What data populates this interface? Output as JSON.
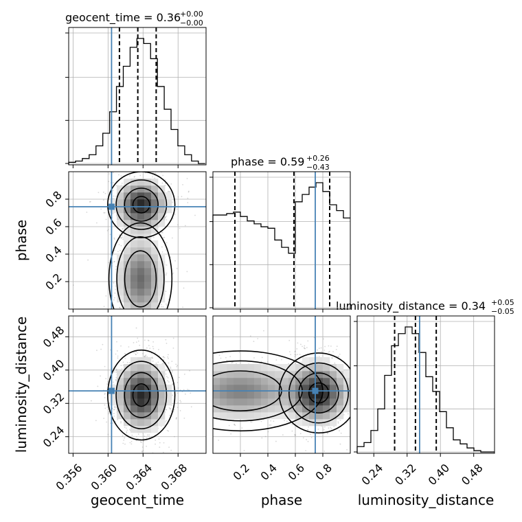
{
  "colors": {
    "truth": "#4682b4",
    "hist": "#000000",
    "grid": "#b0b0b0"
  },
  "chart_data": {
    "type": "corner",
    "parameters": [
      "geocent_time",
      "phase",
      "luminosity_distance"
    ],
    "titles": [
      {
        "label": "geocent_time = 0.36",
        "sup": "+0.00",
        "sub": "−0.00"
      },
      {
        "label": "phase = 0.59",
        "sup": "+0.26",
        "sub": "−0.43"
      },
      {
        "label": "luminosity_distance = 0.34",
        "sup": "+0.05",
        "sub": "−0.05"
      }
    ],
    "ranges": {
      "geocent_time": [
        0.3555,
        0.3712
      ],
      "phase": [
        0.0,
        1.0
      ],
      "luminosity_distance": [
        0.2,
        0.53
      ]
    },
    "ticks": {
      "geocent_time": [
        0.356,
        0.36,
        0.364,
        0.368
      ],
      "phase": [
        0.2,
        0.4,
        0.6,
        0.8
      ],
      "luminosity_distance": [
        0.24,
        0.32,
        0.4,
        0.48
      ]
    },
    "tick_labels": {
      "geocent_time": [
        "0.356",
        "0.360",
        "0.364",
        "0.368"
      ],
      "phase": [
        "0.2",
        "0.4",
        "0.6",
        "0.8"
      ],
      "luminosity_distance": [
        "0.24",
        "0.32",
        "0.40",
        "0.48"
      ]
    },
    "truth": {
      "geocent_time": 0.3604,
      "phase": 0.745,
      "luminosity_distance": 0.35
    },
    "quantiles": {
      "geocent_time": [
        0.3613,
        0.3634,
        0.3655
      ],
      "phase": [
        0.16,
        0.59,
        0.85
      ],
      "luminosity_distance": [
        0.29,
        0.34,
        0.39
      ]
    },
    "histograms": {
      "geocent_time": {
        "bin_edges": [
          0.3555,
          0.35628,
          0.35706,
          0.35784,
          0.35862,
          0.3594,
          0.36018,
          0.36096,
          0.36174,
          0.36252,
          0.3633,
          0.36408,
          0.36486,
          0.36564,
          0.36642,
          0.3672,
          0.36798,
          0.36876,
          0.36954,
          0.37032,
          0.3711
        ],
        "counts": [
          0.02,
          0.03,
          0.05,
          0.08,
          0.15,
          0.25,
          0.42,
          0.62,
          0.78,
          0.93,
          1.0,
          0.96,
          0.84,
          0.62,
          0.44,
          0.28,
          0.15,
          0.08,
          0.03,
          0.01
        ]
      },
      "phase": {
        "bin_edges": [
          0.0,
          0.05,
          0.1,
          0.15,
          0.2,
          0.25,
          0.3,
          0.35,
          0.4,
          0.45,
          0.5,
          0.55,
          0.6,
          0.65,
          0.7,
          0.75,
          0.8,
          0.85,
          0.9,
          0.95,
          1.0
        ],
        "counts": [
          0.64,
          0.64,
          0.65,
          0.66,
          0.63,
          0.6,
          0.58,
          0.56,
          0.55,
          0.47,
          0.42,
          0.38,
          0.73,
          0.78,
          0.83,
          0.86,
          0.8,
          0.71,
          0.67,
          0.62
        ]
      },
      "luminosity_distance": {
        "bin_edges": [
          0.2,
          0.2165,
          0.233,
          0.2495,
          0.266,
          0.2825,
          0.299,
          0.3155,
          0.332,
          0.3485,
          0.365,
          0.3815,
          0.398,
          0.4145,
          0.431,
          0.4475,
          0.464,
          0.4805,
          0.497,
          0.5135,
          0.53
        ],
        "counts": [
          0.05,
          0.08,
          0.17,
          0.33,
          0.58,
          0.8,
          0.89,
          0.94,
          0.89,
          0.75,
          0.57,
          0.46,
          0.31,
          0.19,
          0.1,
          0.07,
          0.04,
          0.02,
          0.01,
          0.01
        ]
      }
    },
    "density_peaks": {
      "phase_vs_geocent_time": [
        {
          "x": 0.3638,
          "y": 0.76,
          "sx": 0.0016,
          "sy": 0.1,
          "w": 1.0
        },
        {
          "x": 0.3637,
          "y": 0.22,
          "sx": 0.0015,
          "sy": 0.17,
          "w": 0.7
        }
      ],
      "luminosity_distance_vs_geocent_time": [
        {
          "x": 0.3638,
          "y": 0.34,
          "sx": 0.0016,
          "sy": 0.045,
          "w": 1.0
        }
      ],
      "luminosity_distance_vs_phase": [
        {
          "x": 0.77,
          "y": 0.345,
          "sx": 0.12,
          "sy": 0.04,
          "w": 1.0
        },
        {
          "x": 0.2,
          "y": 0.35,
          "sx": 0.25,
          "sy": 0.04,
          "w": 0.6
        }
      ]
    },
    "grid": true
  }
}
